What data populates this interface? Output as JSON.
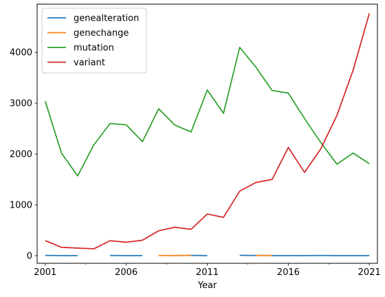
{
  "chart_data": {
    "type": "line",
    "title": "",
    "xlabel": "Year",
    "ylabel": "",
    "xlim": [
      2000.5,
      2021.5
    ],
    "ylim": [
      -150,
      4950
    ],
    "x_ticks": [
      2001,
      2006,
      2011,
      2016,
      2021
    ],
    "x_minor_ticks": [
      2003.5,
      2008.5,
      2013.5,
      2018.5
    ],
    "y_ticks": [
      0,
      1000,
      2000,
      3000,
      4000
    ],
    "grid": false,
    "legend_position": "top-left",
    "x": [
      2001,
      2002,
      2003,
      2004,
      2005,
      2006,
      2007,
      2008,
      2009,
      2010,
      2011,
      2012,
      2013,
      2014,
      2015,
      2016,
      2017,
      2018,
      2019,
      2020,
      2021
    ],
    "series": [
      {
        "name": "genealteration",
        "color": "#1f77b4",
        "values": [
          5,
          3,
          2,
          null,
          4,
          2,
          3,
          null,
          2,
          6,
          3,
          null,
          8,
          4,
          2,
          3,
          2,
          4,
          3,
          2,
          3
        ]
      },
      {
        "name": "genechange",
        "color": "#ff7f0e",
        "values": [
          null,
          null,
          null,
          null,
          null,
          null,
          null,
          2,
          3,
          5,
          null,
          null,
          null,
          3,
          3,
          null,
          null,
          null,
          null,
          null,
          null
        ]
      },
      {
        "name": "mutation",
        "color": "#2ca02c",
        "values": [
          3040,
          2020,
          1570,
          2180,
          2600,
          2575,
          2245,
          2890,
          2570,
          2435,
          3260,
          2800,
          4100,
          3710,
          3250,
          3200,
          2700,
          2230,
          1800,
          2020,
          1810
        ]
      },
      {
        "name": "variant",
        "color": "#d62728",
        "values": [
          295,
          165,
          150,
          135,
          295,
          265,
          305,
          490,
          560,
          520,
          820,
          755,
          1270,
          1440,
          1500,
          2130,
          1640,
          2100,
          2760,
          3650,
          4770
        ]
      }
    ]
  }
}
